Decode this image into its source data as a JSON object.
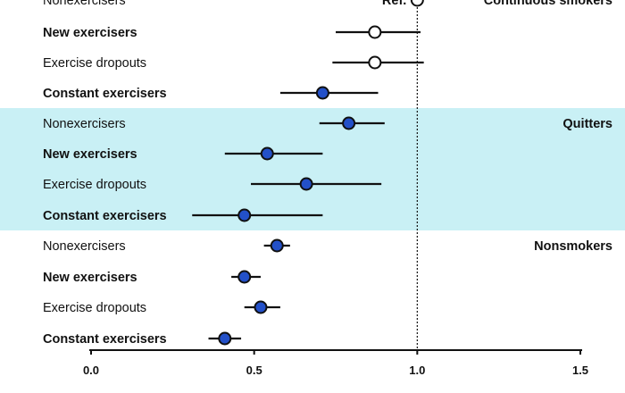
{
  "chart_data": {
    "type": "forest",
    "xlim": [
      0.0,
      1.5
    ],
    "x_ticks": [
      "0.0",
      "0.5",
      "1.0",
      "1.5"
    ],
    "reference_line": 1.0,
    "reference_label": "Ref.",
    "groups": [
      {
        "name": "Continuous smokers",
        "shaded": false,
        "rows": [
          {
            "label": "Nonexercisers",
            "bold": false,
            "value": 1.0,
            "lo": null,
            "hi": null,
            "marker": "open",
            "reference": true
          },
          {
            "label": "New exercisers",
            "bold": true,
            "value": 0.87,
            "lo": 0.75,
            "hi": 1.01,
            "marker": "open"
          },
          {
            "label": "Exercise dropouts",
            "bold": false,
            "value": 0.87,
            "lo": 0.74,
            "hi": 1.02,
            "marker": "open"
          },
          {
            "label": "Constant exercisers",
            "bold": true,
            "value": 0.71,
            "lo": 0.58,
            "hi": 0.88,
            "marker": "filled"
          }
        ]
      },
      {
        "name": "Quitters",
        "shaded": true,
        "rows": [
          {
            "label": "Nonexercisers",
            "bold": false,
            "value": 0.79,
            "lo": 0.7,
            "hi": 0.9,
            "marker": "filled"
          },
          {
            "label": "New exercisers",
            "bold": true,
            "value": 0.54,
            "lo": 0.41,
            "hi": 0.71,
            "marker": "filled"
          },
          {
            "label": "Exercise dropouts",
            "bold": false,
            "value": 0.66,
            "lo": 0.49,
            "hi": 0.89,
            "marker": "filled"
          },
          {
            "label": "Constant exercisers",
            "bold": true,
            "value": 0.47,
            "lo": 0.31,
            "hi": 0.71,
            "marker": "filled"
          }
        ]
      },
      {
        "name": "Nonsmokers",
        "shaded": false,
        "rows": [
          {
            "label": "Nonexercisers",
            "bold": false,
            "value": 0.57,
            "lo": 0.53,
            "hi": 0.61,
            "marker": "filled"
          },
          {
            "label": "New exercisers",
            "bold": true,
            "value": 0.47,
            "lo": 0.43,
            "hi": 0.52,
            "marker": "filled"
          },
          {
            "label": "Exercise dropouts",
            "bold": false,
            "value": 0.52,
            "lo": 0.47,
            "hi": 0.58,
            "marker": "filled"
          },
          {
            "label": "Constant exercisers",
            "bold": true,
            "value": 0.41,
            "lo": 0.36,
            "hi": 0.46,
            "marker": "filled"
          }
        ]
      }
    ]
  },
  "colors": {
    "shade": "#c9f0f5",
    "marker_fill": "#2350c8",
    "marker_stroke": "#101010",
    "open_fill": "#ffffff",
    "line": "#111111"
  }
}
